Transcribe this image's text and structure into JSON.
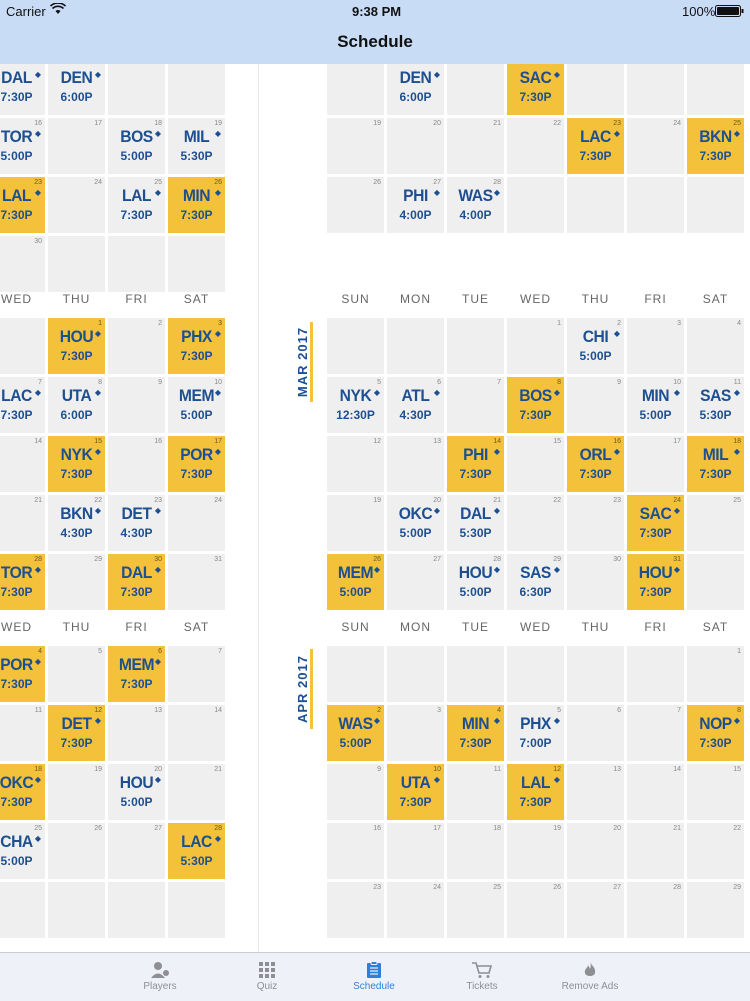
{
  "status_bar": {
    "carrier": "Carrier",
    "time": "9:38 PM",
    "battery": "100%"
  },
  "nav": {
    "title": "Schedule"
  },
  "day_headers": [
    "SUN",
    "MON",
    "TUE",
    "WED",
    "THU",
    "FRI",
    "SAT"
  ],
  "month_labels": {
    "mar": "MAR 2017",
    "apr": "APR 2017"
  },
  "left_panel": {
    "rows": [
      [
        {
          "d": "",
          "t": "DAL",
          "tm": "7:30P",
          "hl": false,
          "m": "◆"
        },
        {
          "d": "",
          "t": "DEN",
          "tm": "6:00P",
          "hl": false,
          "m": "◆"
        },
        {
          "d": "",
          "t": "",
          "tm": "",
          "hl": false
        },
        {
          "d": "",
          "t": "",
          "tm": "",
          "hl": false
        }
      ],
      [
        {
          "d": "16",
          "t": "TOR",
          "tm": "5:00P",
          "hl": false,
          "m": "◆"
        },
        {
          "d": "17",
          "t": "",
          "tm": "",
          "hl": false
        },
        {
          "d": "18",
          "t": "BOS",
          "tm": "5:00P",
          "hl": false,
          "m": "◆"
        },
        {
          "d": "19",
          "t": "MIL",
          "tm": "5:30P",
          "hl": false,
          "m": "◆"
        }
      ],
      [
        {
          "d": "23",
          "t": "LAL",
          "tm": "7:30P",
          "hl": true,
          "m": "◆"
        },
        {
          "d": "24",
          "t": "",
          "tm": "",
          "hl": false
        },
        {
          "d": "25",
          "t": "LAL",
          "tm": "7:30P",
          "hl": false,
          "m": "◆"
        },
        {
          "d": "26",
          "t": "MIN",
          "tm": "7:30P",
          "hl": true,
          "m": "◆"
        }
      ],
      [
        {
          "d": "30",
          "t": "",
          "tm": "",
          "hl": false
        },
        {
          "d": "",
          "t": "",
          "tm": "",
          "hl": false
        },
        {
          "d": "",
          "t": "",
          "tm": "",
          "hl": false
        },
        {
          "d": "",
          "t": "",
          "tm": "",
          "hl": false
        }
      ]
    ],
    "headers": [
      "WED",
      "THU",
      "FRI",
      "SAT"
    ],
    "mar_rows": [
      [
        {
          "d": "",
          "t": "",
          "tm": "",
          "hl": false
        },
        {
          "d": "1",
          "t": "HOU",
          "tm": "7:30P",
          "hl": true,
          "m": "◆"
        },
        {
          "d": "2",
          "t": "",
          "tm": "",
          "hl": false
        },
        {
          "d": "3",
          "t": "PHX",
          "tm": "7:30P",
          "hl": true,
          "m": "◆"
        }
      ],
      [
        {
          "d": "7",
          "t": "LAC",
          "tm": "7:30P",
          "hl": false,
          "m": "◆"
        },
        {
          "d": "8",
          "t": "UTA",
          "tm": "6:00P",
          "hl": false,
          "m": "◆"
        },
        {
          "d": "9",
          "t": "",
          "tm": "",
          "hl": false
        },
        {
          "d": "10",
          "t": "MEM",
          "tm": "5:00P",
          "hl": false,
          "m": "◆"
        }
      ],
      [
        {
          "d": "14",
          "t": "",
          "tm": "",
          "hl": false
        },
        {
          "d": "15",
          "t": "NYK",
          "tm": "7:30P",
          "hl": true,
          "m": "◆"
        },
        {
          "d": "16",
          "t": "",
          "tm": "",
          "hl": false
        },
        {
          "d": "17",
          "t": "POR",
          "tm": "7:30P",
          "hl": true,
          "m": "◆"
        }
      ],
      [
        {
          "d": "21",
          "t": "",
          "tm": "",
          "hl": false
        },
        {
          "d": "22",
          "t": "BKN",
          "tm": "4:30P",
          "hl": false,
          "m": "◆"
        },
        {
          "d": "23",
          "t": "DET",
          "tm": "4:30P",
          "hl": false,
          "m": "◆"
        },
        {
          "d": "24",
          "t": "",
          "tm": "",
          "hl": false
        }
      ],
      [
        {
          "d": "28",
          "t": "TOR",
          "tm": "7:30P",
          "hl": true,
          "m": "◆"
        },
        {
          "d": "29",
          "t": "",
          "tm": "",
          "hl": false
        },
        {
          "d": "30",
          "t": "DAL",
          "tm": "7:30P",
          "hl": true,
          "m": "◆"
        },
        {
          "d": "31",
          "t": "",
          "tm": "",
          "hl": false
        }
      ]
    ],
    "apr_rows": [
      [
        {
          "d": "4",
          "t": "POR",
          "tm": "7:30P",
          "hl": true,
          "m": "◆"
        },
        {
          "d": "5",
          "t": "",
          "tm": "",
          "hl": false
        },
        {
          "d": "6",
          "t": "MEM",
          "tm": "7:30P",
          "hl": true,
          "m": "◆"
        },
        {
          "d": "7",
          "t": "",
          "tm": "",
          "hl": false
        }
      ],
      [
        {
          "d": "11",
          "t": "",
          "tm": "",
          "hl": false
        },
        {
          "d": "12",
          "t": "DET",
          "tm": "7:30P",
          "hl": true,
          "m": "◆"
        },
        {
          "d": "13",
          "t": "",
          "tm": "",
          "hl": false
        },
        {
          "d": "14",
          "t": "",
          "tm": "",
          "hl": false
        }
      ],
      [
        {
          "d": "18",
          "t": "OKC",
          "tm": "7:30P",
          "hl": true,
          "m": "◆"
        },
        {
          "d": "19",
          "t": "",
          "tm": "",
          "hl": false
        },
        {
          "d": "20",
          "t": "HOU",
          "tm": "5:00P",
          "hl": false,
          "m": "◆"
        },
        {
          "d": "21",
          "t": "",
          "tm": "",
          "hl": false
        }
      ],
      [
        {
          "d": "25",
          "t": "CHA",
          "tm": "5:00P",
          "hl": false,
          "m": "◆"
        },
        {
          "d": "26",
          "t": "",
          "tm": "",
          "hl": false
        },
        {
          "d": "27",
          "t": "",
          "tm": "",
          "hl": false
        },
        {
          "d": "28",
          "t": "LAC",
          "tm": "5:30P",
          "hl": true,
          "m": "◆"
        }
      ],
      [
        {
          "d": "",
          "t": "",
          "tm": "",
          "hl": false
        },
        {
          "d": "",
          "t": "",
          "tm": "",
          "hl": false
        },
        {
          "d": "",
          "t": "",
          "tm": "",
          "hl": false
        },
        {
          "d": "",
          "t": "",
          "tm": "",
          "hl": false
        }
      ]
    ]
  },
  "right_panel": {
    "feb_rows": [
      [
        {
          "d": "",
          "t": "",
          "tm": "",
          "hl": false
        },
        {
          "d": "",
          "t": "DEN",
          "tm": "6:00P",
          "hl": false,
          "m": "◆"
        },
        {
          "d": "",
          "t": "",
          "tm": "",
          "hl": false
        },
        {
          "d": "",
          "t": "SAC",
          "tm": "7:30P",
          "hl": true,
          "m": "◆"
        },
        {
          "d": "",
          "t": "",
          "tm": "",
          "hl": false
        },
        {
          "d": "",
          "t": "",
          "tm": "",
          "hl": false
        },
        {
          "d": "",
          "t": "",
          "tm": "",
          "hl": false
        }
      ],
      [
        {
          "d": "19",
          "t": "",
          "tm": "",
          "hl": false
        },
        {
          "d": "20",
          "t": "",
          "tm": "",
          "hl": false
        },
        {
          "d": "21",
          "t": "",
          "tm": "",
          "hl": false
        },
        {
          "d": "22",
          "t": "",
          "tm": "",
          "hl": false
        },
        {
          "d": "23",
          "t": "LAC",
          "tm": "7:30P",
          "hl": true,
          "m": "◆"
        },
        {
          "d": "24",
          "t": "",
          "tm": "",
          "hl": false
        },
        {
          "d": "25",
          "t": "BKN",
          "tm": "7:30P",
          "hl": true,
          "m": "◆"
        }
      ],
      [
        {
          "d": "26",
          "t": "",
          "tm": "",
          "hl": false
        },
        {
          "d": "27",
          "t": "PHI",
          "tm": "4:00P",
          "hl": false,
          "m": "◆"
        },
        {
          "d": "28",
          "t": "WAS",
          "tm": "4:00P",
          "hl": false,
          "m": "◆"
        },
        {
          "d": "",
          "t": "",
          "tm": "",
          "hl": false
        },
        {
          "d": "",
          "t": "",
          "tm": "",
          "hl": false
        },
        {
          "d": "",
          "t": "",
          "tm": "",
          "hl": false
        },
        {
          "d": "",
          "t": "",
          "tm": "",
          "hl": false
        }
      ]
    ],
    "mar_rows": [
      [
        {
          "d": "",
          "t": "",
          "tm": "",
          "hl": false
        },
        {
          "d": "",
          "t": "",
          "tm": "",
          "hl": false
        },
        {
          "d": "",
          "t": "",
          "tm": "",
          "hl": false
        },
        {
          "d": "1",
          "t": "",
          "tm": "",
          "hl": false
        },
        {
          "d": "2",
          "t": "CHI",
          "tm": "5:00P",
          "hl": false,
          "m": "◆"
        },
        {
          "d": "3",
          "t": "",
          "tm": "",
          "hl": false
        },
        {
          "d": "4",
          "t": "",
          "tm": "",
          "hl": false
        }
      ],
      [
        {
          "d": "5",
          "t": "NYK",
          "tm": "12:30P",
          "hl": false,
          "m": "◆"
        },
        {
          "d": "6",
          "t": "ATL",
          "tm": "4:30P",
          "hl": false,
          "m": "◆"
        },
        {
          "d": "7",
          "t": "",
          "tm": "",
          "hl": false
        },
        {
          "d": "8",
          "t": "BOS",
          "tm": "7:30P",
          "hl": true,
          "m": "◆"
        },
        {
          "d": "9",
          "t": "",
          "tm": "",
          "hl": false
        },
        {
          "d": "10",
          "t": "MIN",
          "tm": "5:00P",
          "hl": false,
          "m": "◆"
        },
        {
          "d": "11",
          "t": "SAS",
          "tm": "5:30P",
          "hl": false,
          "m": "◆"
        }
      ],
      [
        {
          "d": "12",
          "t": "",
          "tm": "",
          "hl": false
        },
        {
          "d": "13",
          "t": "",
          "tm": "",
          "hl": false
        },
        {
          "d": "14",
          "t": "PHI",
          "tm": "7:30P",
          "hl": true,
          "m": "◆"
        },
        {
          "d": "15",
          "t": "",
          "tm": "",
          "hl": false
        },
        {
          "d": "16",
          "t": "ORL",
          "tm": "7:30P",
          "hl": true,
          "m": "◆"
        },
        {
          "d": "17",
          "t": "",
          "tm": "",
          "hl": false
        },
        {
          "d": "18",
          "t": "MIL",
          "tm": "7:30P",
          "hl": true,
          "m": "◆"
        }
      ],
      [
        {
          "d": "19",
          "t": "",
          "tm": "",
          "hl": false
        },
        {
          "d": "20",
          "t": "OKC",
          "tm": "5:00P",
          "hl": false,
          "m": "◆"
        },
        {
          "d": "21",
          "t": "DAL",
          "tm": "5:30P",
          "hl": false,
          "m": "◆"
        },
        {
          "d": "22",
          "t": "",
          "tm": "",
          "hl": false
        },
        {
          "d": "23",
          "t": "",
          "tm": "",
          "hl": false
        },
        {
          "d": "24",
          "t": "SAC",
          "tm": "7:30P",
          "hl": true,
          "m": "◆"
        },
        {
          "d": "25",
          "t": "",
          "tm": "",
          "hl": false
        }
      ],
      [
        {
          "d": "26",
          "t": "MEM",
          "tm": "5:00P",
          "hl": true,
          "m": "◆"
        },
        {
          "d": "27",
          "t": "",
          "tm": "",
          "hl": false
        },
        {
          "d": "28",
          "t": "HOU",
          "tm": "5:00P",
          "hl": false,
          "m": "◆"
        },
        {
          "d": "29",
          "t": "SAS",
          "tm": "6:30P",
          "hl": false,
          "m": "◆"
        },
        {
          "d": "30",
          "t": "",
          "tm": "",
          "hl": false
        },
        {
          "d": "31",
          "t": "HOU",
          "tm": "7:30P",
          "hl": true,
          "m": "◆"
        },
        {
          "d": "",
          "t": "",
          "tm": "",
          "hl": false
        }
      ]
    ],
    "apr_rows": [
      [
        {
          "d": "",
          "t": "",
          "tm": "",
          "hl": false
        },
        {
          "d": "",
          "t": "",
          "tm": "",
          "hl": false
        },
        {
          "d": "",
          "t": "",
          "tm": "",
          "hl": false
        },
        {
          "d": "",
          "t": "",
          "tm": "",
          "hl": false
        },
        {
          "d": "",
          "t": "",
          "tm": "",
          "hl": false
        },
        {
          "d": "",
          "t": "",
          "tm": "",
          "hl": false
        },
        {
          "d": "1",
          "t": "",
          "tm": "",
          "hl": false
        }
      ],
      [
        {
          "d": "2",
          "t": "WAS",
          "tm": "5:00P",
          "hl": true,
          "m": "◆"
        },
        {
          "d": "3",
          "t": "",
          "tm": "",
          "hl": false
        },
        {
          "d": "4",
          "t": "MIN",
          "tm": "7:30P",
          "hl": true,
          "m": "◆"
        },
        {
          "d": "5",
          "t": "PHX",
          "tm": "7:00P",
          "hl": false,
          "m": "◆"
        },
        {
          "d": "6",
          "t": "",
          "tm": "",
          "hl": false
        },
        {
          "d": "7",
          "t": "",
          "tm": "",
          "hl": false
        },
        {
          "d": "8",
          "t": "NOP",
          "tm": "7:30P",
          "hl": true,
          "m": "◆"
        }
      ],
      [
        {
          "d": "9",
          "t": "",
          "tm": "",
          "hl": false
        },
        {
          "d": "10",
          "t": "UTA",
          "tm": "7:30P",
          "hl": true,
          "m": "◆"
        },
        {
          "d": "11",
          "t": "",
          "tm": "",
          "hl": false
        },
        {
          "d": "12",
          "t": "LAL",
          "tm": "7:30P",
          "hl": true,
          "m": "◆"
        },
        {
          "d": "13",
          "t": "",
          "tm": "",
          "hl": false
        },
        {
          "d": "14",
          "t": "",
          "tm": "",
          "hl": false
        },
        {
          "d": "15",
          "t": "",
          "tm": "",
          "hl": false
        }
      ],
      [
        {
          "d": "16",
          "t": "",
          "tm": "",
          "hl": false
        },
        {
          "d": "17",
          "t": "",
          "tm": "",
          "hl": false
        },
        {
          "d": "18",
          "t": "",
          "tm": "",
          "hl": false
        },
        {
          "d": "19",
          "t": "",
          "tm": "",
          "hl": false
        },
        {
          "d": "20",
          "t": "",
          "tm": "",
          "hl": false
        },
        {
          "d": "21",
          "t": "",
          "tm": "",
          "hl": false
        },
        {
          "d": "22",
          "t": "",
          "tm": "",
          "hl": false
        }
      ],
      [
        {
          "d": "23",
          "t": "",
          "tm": "",
          "hl": false
        },
        {
          "d": "24",
          "t": "",
          "tm": "",
          "hl": false
        },
        {
          "d": "25",
          "t": "",
          "tm": "",
          "hl": false
        },
        {
          "d": "26",
          "t": "",
          "tm": "",
          "hl": false
        },
        {
          "d": "27",
          "t": "",
          "tm": "",
          "hl": false
        },
        {
          "d": "28",
          "t": "",
          "tm": "",
          "hl": false
        },
        {
          "d": "29",
          "t": "",
          "tm": "",
          "hl": false
        }
      ]
    ]
  },
  "tabs": [
    {
      "label": "Players",
      "icon": "players-icon",
      "active": false
    },
    {
      "label": "Quiz",
      "icon": "quiz-grid-icon",
      "active": false
    },
    {
      "label": "Schedule",
      "icon": "schedule-clipboard-icon",
      "active": true
    },
    {
      "label": "Tickets",
      "icon": "cart-icon",
      "active": false
    },
    {
      "label": "Remove Ads",
      "icon": "flame-icon",
      "active": false
    }
  ],
  "colors": {
    "highlight": "#f3c13a",
    "team_text": "#1d4f91",
    "cell_bg": "#efefef",
    "bar_bg": "#c9dcf5",
    "tab_active": "#2f7fd8"
  }
}
